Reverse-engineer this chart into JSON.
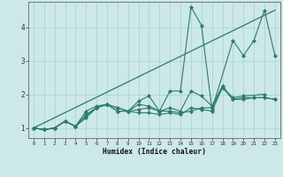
{
  "xlabel": "Humidex (Indice chaleur)",
  "bg_color": "#cce8e8",
  "line_color": "#2d7a6b",
  "grid_color": "#afd4d4",
  "xlim": [
    -0.5,
    23.5
  ],
  "ylim": [
    0.7,
    4.75
  ],
  "yticks": [
    1,
    2,
    3,
    4
  ],
  "series": [
    {
      "x": [
        0,
        1,
        2,
        3,
        4,
        5,
        6,
        7,
        8,
        9,
        10,
        11,
        12,
        13,
        14,
        15,
        16,
        17,
        18,
        19,
        20,
        21,
        22,
        23
      ],
      "y": [
        1.0,
        0.95,
        1.0,
        1.2,
        1.05,
        1.3,
        1.6,
        1.7,
        1.6,
        1.5,
        1.45,
        1.45,
        1.4,
        1.45,
        1.4,
        1.6,
        1.55,
        1.5,
        2.2,
        1.85,
        1.85,
        1.9,
        1.9,
        1.85
      ]
    },
    {
      "x": [
        0,
        1,
        2,
        3,
        4,
        5,
        6,
        7,
        8,
        9,
        10,
        11,
        12,
        13,
        14,
        15,
        16,
        17,
        18,
        19,
        20,
        21,
        22,
        23
      ],
      "y": [
        1.0,
        0.95,
        1.0,
        1.2,
        1.05,
        1.35,
        1.6,
        1.7,
        1.6,
        1.5,
        1.7,
        1.65,
        1.5,
        1.6,
        1.5,
        2.1,
        1.95,
        1.65,
        2.25,
        1.85,
        1.9,
        1.9,
        1.9,
        1.85
      ]
    },
    {
      "x": [
        0,
        1,
        2,
        3,
        4,
        5,
        6,
        7,
        8,
        9,
        10,
        11,
        12,
        13,
        14,
        15,
        16,
        17,
        18,
        19,
        20,
        22
      ],
      "y": [
        1.0,
        0.95,
        1.0,
        1.2,
        1.05,
        1.4,
        1.6,
        1.7,
        1.5,
        1.5,
        1.55,
        1.6,
        1.5,
        1.5,
        1.45,
        1.5,
        1.6,
        1.6,
        2.2,
        1.9,
        1.95,
        2.0
      ]
    },
    {
      "x": [
        0,
        1,
        2,
        3,
        4,
        5,
        6,
        7,
        8,
        9,
        10,
        11,
        12,
        13,
        14,
        15,
        16,
        17,
        19,
        20,
        21,
        22,
        23
      ],
      "y": [
        1.0,
        0.95,
        1.0,
        1.2,
        1.05,
        1.5,
        1.65,
        1.7,
        1.5,
        1.5,
        1.8,
        1.95,
        1.5,
        2.1,
        2.1,
        4.6,
        4.05,
        1.55,
        3.6,
        3.15,
        3.6,
        4.5,
        3.15
      ]
    }
  ],
  "linear_line": {
    "x": [
      0,
      23
    ],
    "y": [
      1.0,
      4.5
    ]
  }
}
